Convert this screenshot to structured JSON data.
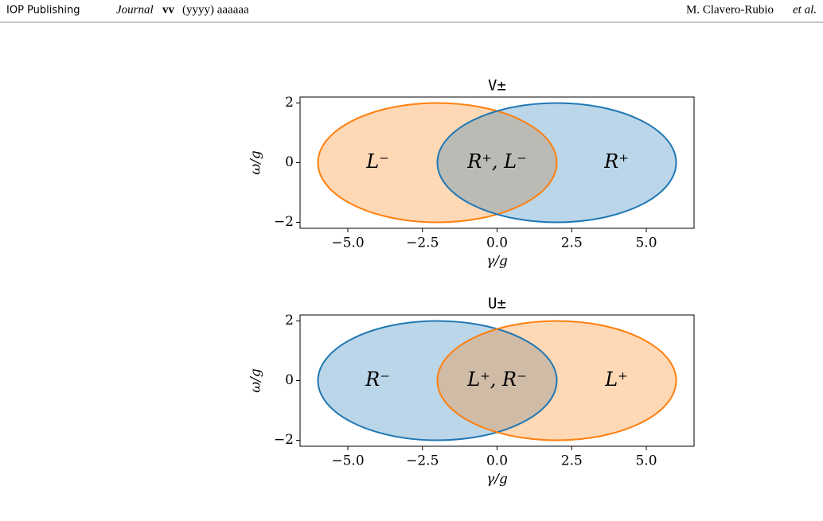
{
  "header": {
    "publisher": "IOP Publishing",
    "journal": "Journal",
    "volume": "vv",
    "year_article": "(yyyy) aaaaaa",
    "authors": "M. Clavero-Rubio",
    "et_al": "et al."
  },
  "chart_data": [
    {
      "type": "ellipse",
      "title": "V±",
      "xlabel": "γ/g",
      "ylabel": "ω/g",
      "xlim": [
        -6.6,
        6.6
      ],
      "ylim": [
        -2.2,
        2.2
      ],
      "xticks": [
        {
          "value": -5,
          "label": "−5.0"
        },
        {
          "value": -2.5,
          "label": "−2.5"
        },
        {
          "value": 0,
          "label": "0.0"
        },
        {
          "value": 2.5,
          "label": "2.5"
        },
        {
          "value": 5,
          "label": "5.0"
        }
      ],
      "yticks": [
        {
          "value": -2,
          "label": "−2"
        },
        0,
        2
      ],
      "shapes": [
        {
          "color": "#ff7f0e",
          "cx": -2,
          "cy": 0,
          "rx": 4,
          "ry": 2
        },
        {
          "color": "#1f77b4",
          "cx": 2,
          "cy": 0,
          "rx": 4,
          "ry": 2
        }
      ],
      "labels": [
        {
          "text": "L⁻",
          "x": -4,
          "y": 0
        },
        {
          "text": "R⁺, L⁻",
          "x": 0,
          "y": 0
        },
        {
          "text": "R⁺",
          "x": 4,
          "y": 0
        }
      ]
    },
    {
      "type": "ellipse",
      "title": "U±",
      "xlabel": "γ/g",
      "ylabel": "ω/g",
      "xlim": [
        -6.6,
        6.6
      ],
      "ylim": [
        -2.2,
        2.2
      ],
      "xticks": [
        {
          "value": -5,
          "label": "−5.0"
        },
        {
          "value": -2.5,
          "label": "−2.5"
        },
        {
          "value": 0,
          "label": "0.0"
        },
        {
          "value": 2.5,
          "label": "2.5"
        },
        {
          "value": 5,
          "label": "5.0"
        }
      ],
      "yticks": [
        {
          "value": -2,
          "label": "−2"
        },
        0,
        2
      ],
      "shapes": [
        {
          "color": "#1f77b4",
          "cx": -2,
          "cy": 0,
          "rx": 4,
          "ry": 2
        },
        {
          "color": "#ff7f0e",
          "cx": 2,
          "cy": 0,
          "rx": 4,
          "ry": 2
        }
      ],
      "labels": [
        {
          "text": "R⁻",
          "x": -4,
          "y": 0
        },
        {
          "text": "L⁺, R⁻",
          "x": 0,
          "y": 0
        },
        {
          "text": "L⁺",
          "x": 4,
          "y": 0
        }
      ]
    }
  ]
}
